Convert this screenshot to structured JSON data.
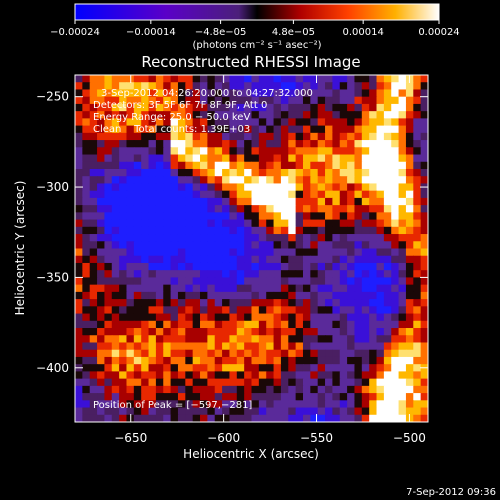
{
  "chart_data": {
    "type": "heatmap",
    "title": "Reconstructed RHESSI Image",
    "xlabel": "Heliocentric X (arcsec)",
    "ylabel": "Heliocentric Y (arcsec)",
    "xlim": [
      -680,
      -490
    ],
    "ylim": [
      -430,
      -238
    ],
    "x_ticks": [
      -650,
      -600,
      -550,
      -500
    ],
    "x_tick_labels": [
      "−650",
      "−600",
      "−550",
      "−500"
    ],
    "y_ticks": [
      -250,
      -300,
      -350,
      -400
    ],
    "y_tick_labels": [
      "−250",
      "−300",
      "−350",
      "−400"
    ],
    "colorbar": {
      "range": [
        -0.00024,
        0.00024
      ],
      "ticks": [
        -0.00024,
        -0.00014,
        -4.8e-05,
        4.8e-05,
        0.00014,
        0.00024
      ],
      "tick_labels": [
        "−0.00024",
        "−0.00014",
        "−4.8e−05",
        "4.8e−05",
        "0.00014",
        "0.00024"
      ],
      "unit_label": "(photons cm⁻² s⁻¹ asec⁻²)"
    },
    "annotations": {
      "time_range": "3-Sep-2012 04:26:20.000 to 04:27:32.000",
      "detectors": "Detectors: 3F 5F 6F 7F 8F 9F, Att 0",
      "energy_range": "Energy Range: 25.0 − 50.0 keV",
      "clean": "Clean    Total counts: 1.39E+03",
      "peak": "Position of Peak = [−597,−281]"
    },
    "peak_position": [
      -597,
      -281
    ],
    "grid": false
  },
  "footer": {
    "date": "7-Sep-2012 09:36"
  },
  "colors": {
    "background": "#000000",
    "text": "#ffffff"
  }
}
